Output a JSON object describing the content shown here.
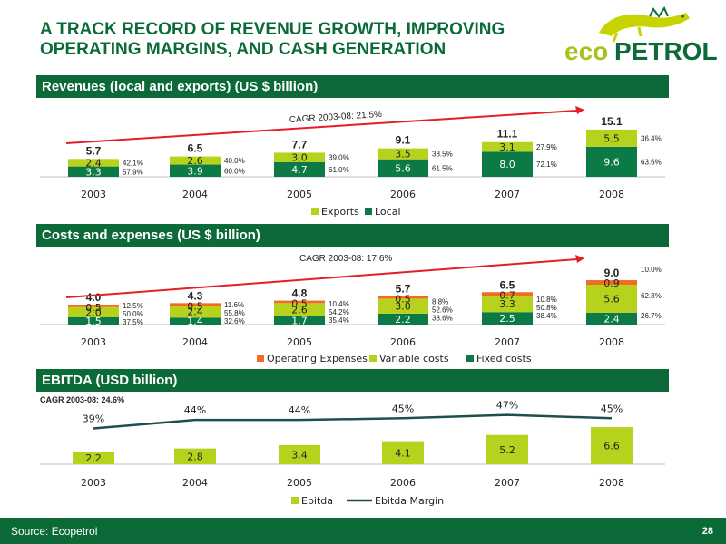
{
  "title": "A TRACK RECORD OF REVENUE GROWTH, IMPROVING OPERATING MARGINS, AND CASH GENERATION",
  "logo": {
    "text": "ecopetrol",
    "colors": {
      "eco": "#a7c219",
      "petrol": "#0b6a38",
      "lizard": "#c8d400"
    }
  },
  "colors": {
    "header": "#0b6a38",
    "light_green": "#b7d21c",
    "dark_green": "#0b7a45",
    "orange": "#f26b21",
    "red_line": "#e41e26",
    "navy_line": "#1f4e4e"
  },
  "section1": {
    "title": "Revenues (local and exports) (US $ billion)"
  },
  "section2": {
    "title": "Costs and expenses (US $ billion)"
  },
  "section3": {
    "title": "EBITDA (USD billion)"
  },
  "footer": {
    "source": "Source: Ecopetrol",
    "page": "28"
  },
  "chart_data": [
    {
      "type": "bar",
      "stacked": true,
      "categories": [
        "2003",
        "2004",
        "2005",
        "2006",
        "2007",
        "2008"
      ],
      "series": [
        {
          "name": "Local",
          "values": [
            3.3,
            3.9,
            4.7,
            5.6,
            8.0,
            9.6
          ],
          "percents": [
            "57.9%",
            "60.0%",
            "61.0%",
            "61.5%",
            "72.1%",
            "63.6%"
          ],
          "color": "#0b7a45"
        },
        {
          "name": "Exports",
          "values": [
            2.4,
            2.6,
            3.0,
            3.5,
            3.1,
            5.5
          ],
          "percents": [
            "42.1%",
            "40.0%",
            "39.0%",
            "38.5%",
            "27.9%",
            "36.4%"
          ],
          "color": "#b7d21c"
        }
      ],
      "value_labels": {
        "Local": [
          "3.3",
          "3.9",
          "4.7",
          "5.6",
          "8.0",
          "9.6"
        ],
        "Exports": [
          "2.4",
          "2.6",
          "3.0",
          "3.5",
          "3.1",
          "5.5"
        ]
      },
      "totals": [
        "5.7",
        "6.5",
        "7.7",
        "9.1",
        "11.1",
        "15.1"
      ],
      "annotation": "CAGR  2003-08: 21.5%",
      "legend": [
        "Exports",
        "Local"
      ],
      "legend_position": "bottom",
      "ylim": [
        0,
        16
      ]
    },
    {
      "type": "bar",
      "stacked": true,
      "categories": [
        "2003",
        "2004",
        "2005",
        "2006",
        "2007",
        "2008"
      ],
      "series": [
        {
          "name": "Fixed costs",
          "values": [
            1.5,
            1.4,
            1.7,
            2.2,
            2.5,
            2.4
          ],
          "percents": [
            "37.5%",
            "32.6%",
            "35.4%",
            "38.6%",
            "38.4%",
            "26.7%"
          ],
          "color": "#0b7a45"
        },
        {
          "name": "Variable costs",
          "values": [
            2.0,
            2.4,
            2.6,
            3.0,
            3.3,
            5.6
          ],
          "percents": [
            "50.0%",
            "55.8%",
            "54.2%",
            "52.6%",
            "50.8%",
            "62.3%"
          ],
          "color": "#b7d21c"
        },
        {
          "name": "Operating Expenses",
          "values": [
            0.5,
            0.5,
            0.5,
            0.5,
            0.7,
            0.9
          ],
          "percents": [
            "12.5%",
            "11.6%",
            "10.4%",
            "8.8%",
            "10.8%",
            "10.0%"
          ],
          "color": "#f26b21"
        }
      ],
      "value_labels": {
        "Fixed costs": [
          "1.5",
          "1.4",
          "1.7",
          "2.2",
          "2.5",
          "2.4"
        ],
        "Variable costs": [
          "2.0",
          "2.4",
          "2.6",
          "3.0",
          "3.3",
          "5.6"
        ],
        "Operating Expenses": [
          "0.5",
          "0.5",
          "0.5",
          "0.5",
          "0.7",
          "0.9"
        ]
      },
      "totals": [
        "4.0",
        "4.3",
        "4.8",
        "5.7",
        "6.5",
        "9.0"
      ],
      "annotation": "CAGR  2003-08: 17.6%",
      "legend": [
        "Operating Expenses",
        "Variable costs",
        "Fixed costs"
      ],
      "legend_position": "bottom",
      "ylim": [
        0,
        9.5
      ]
    },
    {
      "type": "bar",
      "categories": [
        "2003",
        "2004",
        "2005",
        "2006",
        "2007",
        "2008"
      ],
      "series": [
        {
          "name": "Ebitda",
          "values": [
            2.2,
            2.8,
            3.4,
            4.1,
            5.2,
            6.6
          ],
          "color": "#b7d21c"
        },
        {
          "name": "Ebitda Margin",
          "type": "line",
          "values": [
            39,
            44,
            44,
            45,
            47,
            45
          ],
          "color": "#1f4e4e"
        }
      ],
      "value_labels": [
        "2.2",
        "2.8",
        "3.4",
        "4.1",
        "5.2",
        "6.6"
      ],
      "margin_labels": [
        "39%",
        "44%",
        "44%",
        "45%",
        "47%",
        "45%"
      ],
      "annotation": "CAGR  2003-08: 24.6%",
      "legend": [
        "Ebitda",
        "Ebitda Margin"
      ],
      "legend_position": "bottom",
      "ylim": [
        0,
        7
      ]
    }
  ]
}
